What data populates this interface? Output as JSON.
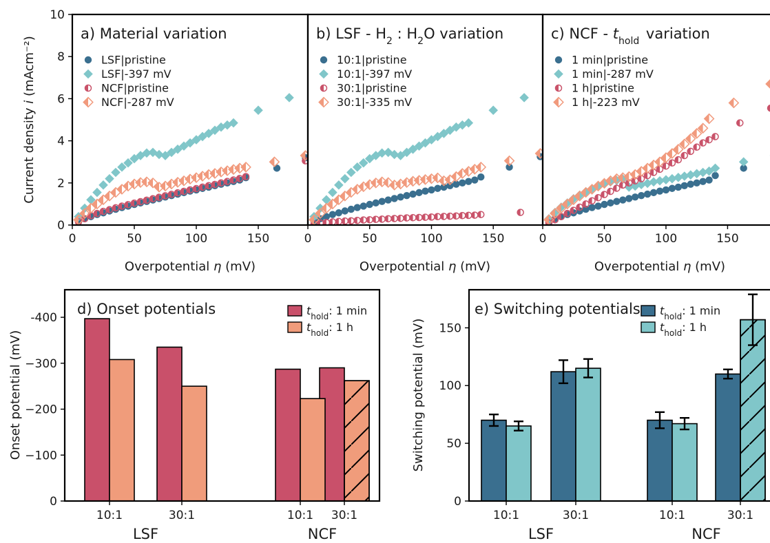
{
  "colors": {
    "lsf_pristine": "#3a6f8f",
    "lsf_ramp": "#80c6c9",
    "ncf_pristine": "#c9536a",
    "ncf_ramp": "#f19a7d",
    "bar_1min_d": "#c9506a",
    "bar_1h_d": "#f09c7b",
    "bar_1min_e": "#3a6f8f",
    "bar_1h_e": "#80c6c9"
  },
  "chart_data": [
    {
      "id": "a",
      "type": "scatter",
      "title": "a) Material variation",
      "xlabel": "Overpotential η (mV)",
      "ylabel": "Current density i (mAcm⁻²)",
      "xlim": [
        0,
        190
      ],
      "ylim": [
        0,
        10
      ],
      "xticks": [
        0,
        50,
        100,
        150
      ],
      "yticks": [
        0,
        2,
        4,
        6,
        8,
        10
      ],
      "legend_position": "top-left",
      "series": [
        {
          "name": "LSF|pristine",
          "marker": "circle",
          "color_key": "lsf_pristine",
          "x": [
            5,
            10,
            15,
            20,
            25,
            30,
            35,
            40,
            45,
            50,
            55,
            60,
            65,
            70,
            75,
            80,
            85,
            90,
            95,
            100,
            105,
            110,
            115,
            120,
            125,
            130,
            135,
            140,
            165,
            188
          ],
          "y": [
            0.15,
            0.3,
            0.4,
            0.5,
            0.58,
            0.67,
            0.75,
            0.83,
            0.9,
            0.98,
            1.05,
            1.12,
            1.19,
            1.26,
            1.33,
            1.4,
            1.47,
            1.54,
            1.61,
            1.67,
            1.74,
            1.8,
            1.87,
            1.94,
            2.0,
            2.07,
            2.14,
            2.25,
            2.7,
            3.2
          ]
        },
        {
          "name": "LSF|-397 mV",
          "marker": "diamond",
          "color_key": "lsf_ramp",
          "x": [
            5,
            10,
            15,
            20,
            25,
            30,
            35,
            40,
            45,
            50,
            55,
            60,
            65,
            70,
            75,
            80,
            85,
            90,
            95,
            100,
            105,
            110,
            115,
            120,
            125,
            130,
            150,
            175
          ],
          "y": [
            0.4,
            0.8,
            1.2,
            1.55,
            1.9,
            2.2,
            2.5,
            2.75,
            2.95,
            3.15,
            3.3,
            3.42,
            3.45,
            3.35,
            3.3,
            3.45,
            3.6,
            3.75,
            3.9,
            4.05,
            4.2,
            4.35,
            4.5,
            4.65,
            4.75,
            4.85,
            5.45,
            6.05
          ]
        },
        {
          "name": "NCF|pristine",
          "marker": "half-circle",
          "color_key": "ncf_pristine",
          "x": [
            5,
            10,
            15,
            20,
            25,
            30,
            35,
            40,
            45,
            50,
            55,
            60,
            65,
            70,
            75,
            80,
            85,
            90,
            95,
            100,
            105,
            110,
            115,
            120,
            125,
            130,
            135,
            140,
            188
          ],
          "y": [
            0.15,
            0.3,
            0.45,
            0.55,
            0.65,
            0.73,
            0.82,
            0.9,
            0.97,
            1.04,
            1.11,
            1.18,
            1.25,
            1.32,
            1.39,
            1.46,
            1.53,
            1.6,
            1.67,
            1.73,
            1.8,
            1.87,
            1.93,
            2.0,
            2.07,
            2.14,
            2.21,
            2.3,
            3.05
          ]
        },
        {
          "name": "NCF|-287 mV",
          "marker": "half-diamond",
          "color_key": "ncf_ramp",
          "x": [
            5,
            10,
            15,
            20,
            25,
            30,
            35,
            40,
            45,
            50,
            55,
            60,
            65,
            70,
            75,
            80,
            85,
            90,
            95,
            100,
            105,
            110,
            115,
            120,
            125,
            130,
            135,
            140,
            163,
            188
          ],
          "y": [
            0.25,
            0.55,
            0.8,
            1.0,
            1.2,
            1.38,
            1.55,
            1.7,
            1.85,
            1.95,
            2.02,
            2.05,
            2.0,
            1.8,
            1.85,
            1.95,
            2.03,
            2.1,
            2.18,
            2.25,
            2.32,
            2.4,
            2.45,
            2.52,
            2.58,
            2.64,
            2.7,
            2.75,
            3.0,
            3.3
          ]
        }
      ]
    },
    {
      "id": "b",
      "type": "scatter",
      "title": "b) LSF - H₂ : H₂O variation",
      "xlabel": "Overpotential η (mV)",
      "xlim": [
        0,
        190
      ],
      "ylim": [
        0,
        10
      ],
      "xticks": [
        0,
        50,
        100,
        150
      ],
      "legend_position": "top-left",
      "series": [
        {
          "name": "10:1|pristine",
          "marker": "circle",
          "color_key": "lsf_pristine",
          "x": [
            5,
            10,
            15,
            20,
            25,
            30,
            35,
            40,
            45,
            50,
            55,
            60,
            65,
            70,
            75,
            80,
            85,
            90,
            95,
            100,
            105,
            110,
            115,
            120,
            125,
            130,
            135,
            140,
            163,
            188
          ],
          "y": [
            0.15,
            0.3,
            0.4,
            0.5,
            0.58,
            0.67,
            0.75,
            0.83,
            0.9,
            0.98,
            1.05,
            1.12,
            1.19,
            1.26,
            1.33,
            1.4,
            1.47,
            1.54,
            1.61,
            1.67,
            1.74,
            1.8,
            1.87,
            1.94,
            2.0,
            2.07,
            2.14,
            2.28,
            2.75,
            3.25
          ]
        },
        {
          "name": "10:1|-397 mV",
          "marker": "diamond",
          "color_key": "lsf_ramp",
          "x": [
            5,
            10,
            15,
            20,
            25,
            30,
            35,
            40,
            45,
            50,
            55,
            60,
            65,
            70,
            75,
            80,
            85,
            90,
            95,
            100,
            105,
            110,
            115,
            120,
            125,
            130,
            150,
            175
          ],
          "y": [
            0.4,
            0.8,
            1.2,
            1.55,
            1.9,
            2.2,
            2.5,
            2.75,
            2.95,
            3.15,
            3.3,
            3.42,
            3.45,
            3.35,
            3.3,
            3.45,
            3.6,
            3.75,
            3.9,
            4.05,
            4.2,
            4.35,
            4.5,
            4.65,
            4.75,
            4.85,
            5.45,
            6.05
          ]
        },
        {
          "name": "30:1|pristine",
          "marker": "half-circle",
          "color_key": "ncf_pristine",
          "x": [
            5,
            10,
            15,
            20,
            25,
            30,
            35,
            40,
            45,
            50,
            55,
            60,
            65,
            70,
            75,
            80,
            85,
            90,
            95,
            100,
            105,
            110,
            115,
            120,
            125,
            130,
            135,
            140,
            172
          ],
          "y": [
            0.05,
            0.1,
            0.12,
            0.15,
            0.17,
            0.19,
            0.2,
            0.22,
            0.24,
            0.25,
            0.27,
            0.28,
            0.3,
            0.31,
            0.32,
            0.34,
            0.35,
            0.36,
            0.37,
            0.38,
            0.4,
            0.41,
            0.42,
            0.43,
            0.45,
            0.46,
            0.47,
            0.5,
            0.6
          ]
        },
        {
          "name": "30:1|-335 mV",
          "marker": "half-diamond",
          "color_key": "ncf_ramp",
          "x": [
            5,
            10,
            15,
            20,
            25,
            30,
            35,
            40,
            45,
            50,
            55,
            60,
            65,
            70,
            75,
            80,
            85,
            90,
            95,
            100,
            105,
            110,
            115,
            120,
            125,
            130,
            135,
            140,
            163,
            188
          ],
          "y": [
            0.25,
            0.55,
            0.8,
            1.0,
            1.2,
            1.38,
            1.55,
            1.7,
            1.82,
            1.92,
            2.0,
            2.05,
            2.02,
            1.9,
            1.95,
            2.02,
            2.08,
            2.12,
            2.16,
            2.2,
            2.24,
            2.1,
            2.15,
            2.3,
            2.45,
            2.55,
            2.65,
            2.75,
            3.05,
            3.4
          ]
        }
      ]
    },
    {
      "id": "c",
      "type": "scatter",
      "title": "c) NCF - t_hold variation",
      "xlabel": "Overpotential η (mV)",
      "xlim": [
        0,
        190
      ],
      "ylim": [
        0,
        10
      ],
      "xticks": [
        0,
        50,
        100,
        150
      ],
      "legend_position": "top-left",
      "series": [
        {
          "name": "1 min|pristine",
          "marker": "circle",
          "color_key": "lsf_pristine",
          "x": [
            5,
            10,
            15,
            20,
            25,
            30,
            35,
            40,
            45,
            50,
            55,
            60,
            65,
            70,
            75,
            80,
            85,
            90,
            95,
            100,
            105,
            110,
            115,
            120,
            125,
            130,
            135,
            140,
            163
          ],
          "y": [
            0.15,
            0.3,
            0.4,
            0.5,
            0.58,
            0.67,
            0.75,
            0.83,
            0.9,
            0.98,
            1.05,
            1.12,
            1.19,
            1.26,
            1.33,
            1.4,
            1.47,
            1.54,
            1.61,
            1.67,
            1.74,
            1.8,
            1.87,
            1.94,
            2.0,
            2.07,
            2.14,
            2.35,
            2.7
          ]
        },
        {
          "name": "1 min|-287 mV",
          "marker": "diamond",
          "color_key": "lsf_ramp",
          "x": [
            5,
            10,
            15,
            20,
            25,
            30,
            35,
            40,
            45,
            50,
            55,
            60,
            65,
            70,
            75,
            80,
            85,
            90,
            95,
            100,
            105,
            110,
            115,
            120,
            125,
            130,
            135,
            140,
            163,
            188
          ],
          "y": [
            0.3,
            0.6,
            0.85,
            1.05,
            1.25,
            1.42,
            1.58,
            1.72,
            1.85,
            1.95,
            2.05,
            2.12,
            2.18,
            1.8,
            1.85,
            1.92,
            1.98,
            2.05,
            2.1,
            2.15,
            2.2,
            2.26,
            2.32,
            2.38,
            2.44,
            2.5,
            2.56,
            2.7,
            3.0,
            3.3
          ]
        },
        {
          "name": "1 h|pristine",
          "marker": "half-circle",
          "color_key": "ncf_pristine",
          "x": [
            5,
            10,
            15,
            20,
            25,
            30,
            35,
            40,
            45,
            50,
            55,
            60,
            65,
            70,
            75,
            80,
            85,
            90,
            95,
            100,
            105,
            110,
            115,
            120,
            125,
            130,
            135,
            140,
            160,
            185
          ],
          "y": [
            0.1,
            0.25,
            0.4,
            0.55,
            0.7,
            0.85,
            1.0,
            1.15,
            1.3,
            1.45,
            1.6,
            1.75,
            1.9,
            2.0,
            2.1,
            2.2,
            2.35,
            2.5,
            2.65,
            2.8,
            2.95,
            3.1,
            3.3,
            3.5,
            3.7,
            3.9,
            4.05,
            4.2,
            4.85,
            5.55
          ]
        },
        {
          "name": "1 h|-223 mV",
          "marker": "half-diamond",
          "color_key": "ncf_ramp",
          "x": [
            5,
            10,
            15,
            20,
            25,
            30,
            35,
            40,
            45,
            50,
            55,
            60,
            65,
            70,
            75,
            80,
            85,
            90,
            95,
            100,
            105,
            110,
            115,
            120,
            125,
            130,
            135,
            155,
            185
          ],
          "y": [
            0.25,
            0.55,
            0.8,
            1.0,
            1.2,
            1.38,
            1.55,
            1.7,
            1.85,
            1.98,
            2.1,
            2.2,
            2.25,
            2.3,
            2.4,
            2.55,
            2.7,
            2.85,
            3.0,
            3.2,
            3.4,
            3.6,
            3.85,
            4.1,
            4.35,
            4.6,
            5.05,
            5.8,
            6.7
          ]
        }
      ]
    },
    {
      "id": "d",
      "type": "bar",
      "title": "d) Onset potentials",
      "ylabel": "Onset potential (mV)",
      "ylim": [
        0,
        -460
      ],
      "yticks": [
        0,
        -100,
        -200,
        -300,
        -400
      ],
      "ytick_labels": [
        "0",
        "−100",
        "−200",
        "−300",
        "-400"
      ],
      "categories": [
        "10:1",
        "30:1",
        "10:1",
        "30:1"
      ],
      "groups": [
        {
          "label": "LSF",
          "categories": [
            0,
            1
          ]
        },
        {
          "label": "NCF",
          "categories": [
            2,
            3
          ]
        }
      ],
      "legend_position": "top-right",
      "series": [
        {
          "name": "t_hold: 1 min",
          "color_key": "bar_1min_d",
          "values": [
            -397,
            -335,
            -287,
            -290
          ],
          "hatched": [
            false,
            false,
            false,
            false
          ]
        },
        {
          "name": "t_hold: 1 h",
          "color_key": "bar_1h_d",
          "values": [
            -308,
            -250,
            -223,
            -262
          ],
          "hatched": [
            false,
            false,
            false,
            true
          ]
        }
      ]
    },
    {
      "id": "e",
      "type": "bar",
      "title": "e) Switching potentials",
      "ylabel": "Switching potential (mV)",
      "ylim": [
        0,
        183
      ],
      "yticks": [
        0,
        50,
        100,
        150
      ],
      "categories": [
        "10:1",
        "30:1",
        "10:1",
        "30:1"
      ],
      "groups": [
        {
          "label": "LSF",
          "categories": [
            0,
            1
          ]
        },
        {
          "label": "NCF",
          "categories": [
            2,
            3
          ]
        }
      ],
      "legend_position": "top-right",
      "series": [
        {
          "name": "t_hold: 1 min",
          "color_key": "bar_1min_e",
          "values": [
            70,
            112,
            70,
            110
          ],
          "errors": [
            5,
            10,
            7,
            4
          ],
          "hatched": [
            false,
            false,
            false,
            false
          ]
        },
        {
          "name": "t_hold: 1 h",
          "color_key": "bar_1h_e",
          "values": [
            65,
            115,
            67,
            157
          ],
          "errors": [
            4,
            8,
            5,
            22
          ],
          "hatched": [
            false,
            false,
            false,
            true
          ]
        }
      ]
    }
  ]
}
